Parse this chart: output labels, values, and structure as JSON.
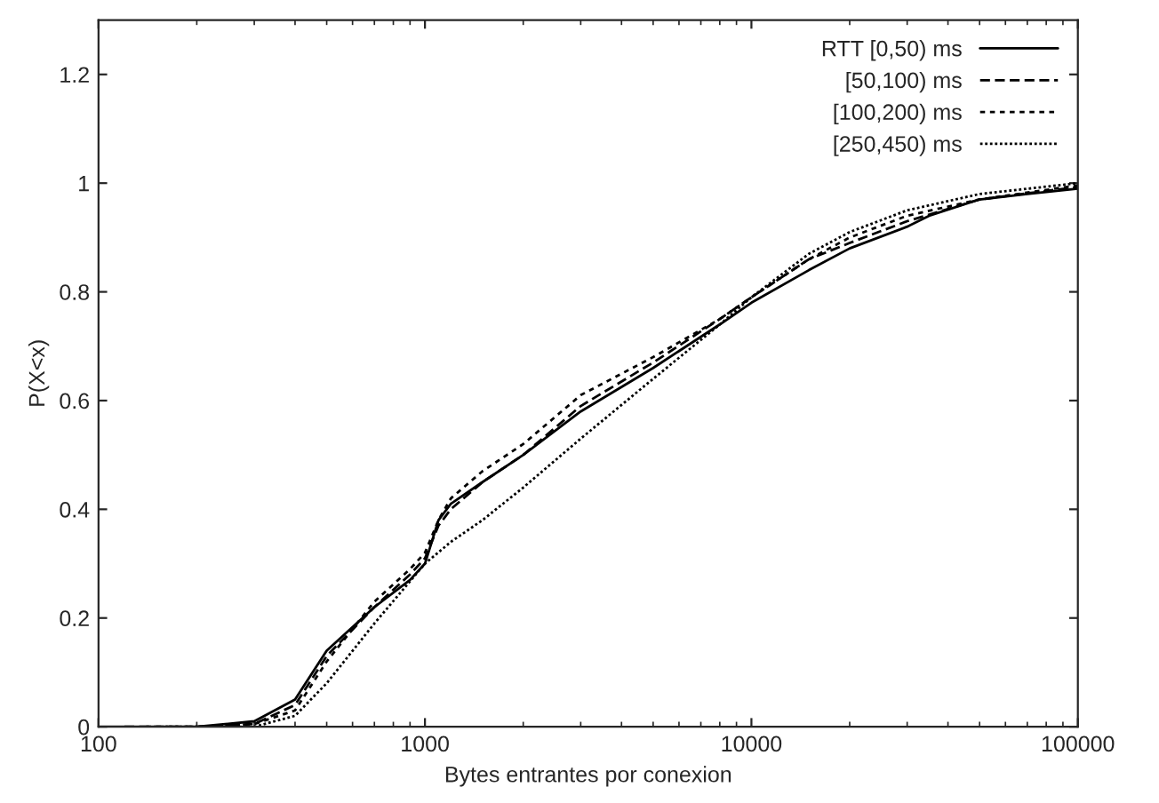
{
  "chart_data": {
    "type": "line",
    "xlabel": "Bytes entrantes por conexion",
    "ylabel": "P(X<x)",
    "log": "x",
    "xlim": [
      100,
      100000
    ],
    "ylim": [
      0,
      1.3
    ],
    "xticks": [
      100,
      1000,
      10000,
      100000
    ],
    "yticks": [
      0,
      0.2,
      0.4,
      0.6,
      0.8,
      1,
      1.2
    ],
    "legend": "top right",
    "grid": false,
    "marker": "none",
    "series": [
      {
        "name": "RTT [0,50) ms",
        "color": "#000000",
        "line_style": "solid",
        "x": [
          100,
          200,
          300,
          400,
          500,
          700,
          900,
          1000,
          1100,
          1200,
          1500,
          2000,
          3000,
          5000,
          8000,
          10000,
          15000,
          20000,
          30000,
          35000,
          50000,
          70000,
          100000
        ],
        "values": [
          0,
          0,
          0.01,
          0.05,
          0.14,
          0.22,
          0.27,
          0.3,
          0.38,
          0.41,
          0.45,
          0.5,
          0.58,
          0.66,
          0.74,
          0.78,
          0.84,
          0.88,
          0.92,
          0.94,
          0.97,
          0.98,
          0.99
        ]
      },
      {
        "name": "[50,100) ms",
        "color": "#000000",
        "line_style": "dashed",
        "x": [
          120,
          200,
          300,
          400,
          500,
          700,
          900,
          1000,
          1100,
          1200,
          1500,
          2000,
          3000,
          5000,
          8000,
          10000,
          15000,
          20000,
          30000,
          50000,
          100000
        ],
        "values": [
          0,
          0,
          0.005,
          0.04,
          0.13,
          0.22,
          0.28,
          0.31,
          0.37,
          0.4,
          0.45,
          0.5,
          0.59,
          0.67,
          0.75,
          0.79,
          0.86,
          0.89,
          0.93,
          0.97,
          0.993
        ]
      },
      {
        "name": "[100,200) ms",
        "color": "#000000",
        "line_style": "dotted",
        "x": [
          140,
          200,
          300,
          400,
          500,
          700,
          900,
          1000,
          1100,
          1200,
          1500,
          2000,
          3000,
          5000,
          8000,
          10000,
          15000,
          20000,
          30000,
          50000,
          100000
        ],
        "values": [
          0,
          0,
          0.005,
          0.03,
          0.12,
          0.23,
          0.29,
          0.32,
          0.38,
          0.42,
          0.47,
          0.52,
          0.61,
          0.68,
          0.75,
          0.79,
          0.86,
          0.9,
          0.94,
          0.97,
          0.996
        ]
      },
      {
        "name": "[250,450) ms",
        "color": "#000000",
        "line_style": "finedotted",
        "x": [
          160,
          200,
          300,
          400,
          500,
          700,
          1000,
          1200,
          1500,
          2000,
          3000,
          5000,
          8000,
          10000,
          15000,
          20000,
          30000,
          50000,
          100000
        ],
        "values": [
          0,
          0,
          0,
          0.02,
          0.08,
          0.19,
          0.3,
          0.34,
          0.38,
          0.44,
          0.53,
          0.64,
          0.74,
          0.79,
          0.87,
          0.91,
          0.95,
          0.98,
          1.0
        ]
      }
    ]
  }
}
